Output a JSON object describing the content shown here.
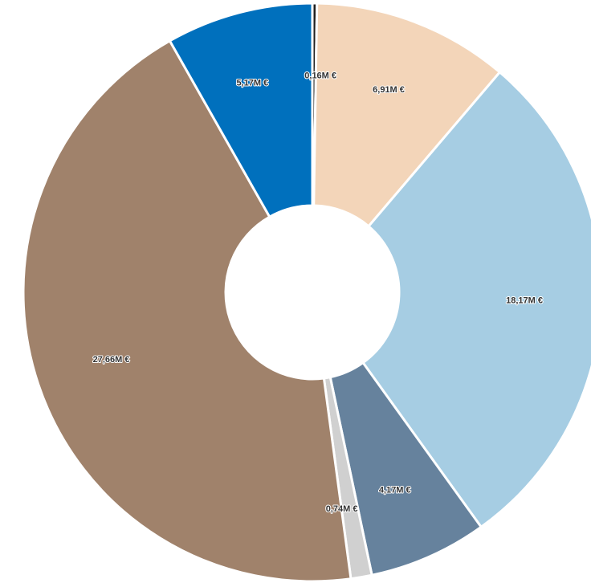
{
  "chart_data": {
    "type": "pie",
    "donut": true,
    "start_angle_deg": 0,
    "direction": "clockwise",
    "legend": "none",
    "title": "",
    "slices": [
      {
        "value": 0.16,
        "label": "0,16M €",
        "color": "#1f1f1f"
      },
      {
        "value": 6.91,
        "label": "6,91M €",
        "color": "#f3d5b9"
      },
      {
        "value": 18.17,
        "label": "18,17M €",
        "color": "#a6cde3"
      },
      {
        "value": 4.17,
        "label": "4,17M €",
        "color": "#66829d"
      },
      {
        "value": 0.74,
        "label": "0,74M €",
        "color": "#d0d0d0"
      },
      {
        "value": 27.66,
        "label": "27,66M €",
        "color": "#a0826b"
      },
      {
        "value": 5.17,
        "label": "5,17M €",
        "color": "#0070bd"
      }
    ]
  }
}
